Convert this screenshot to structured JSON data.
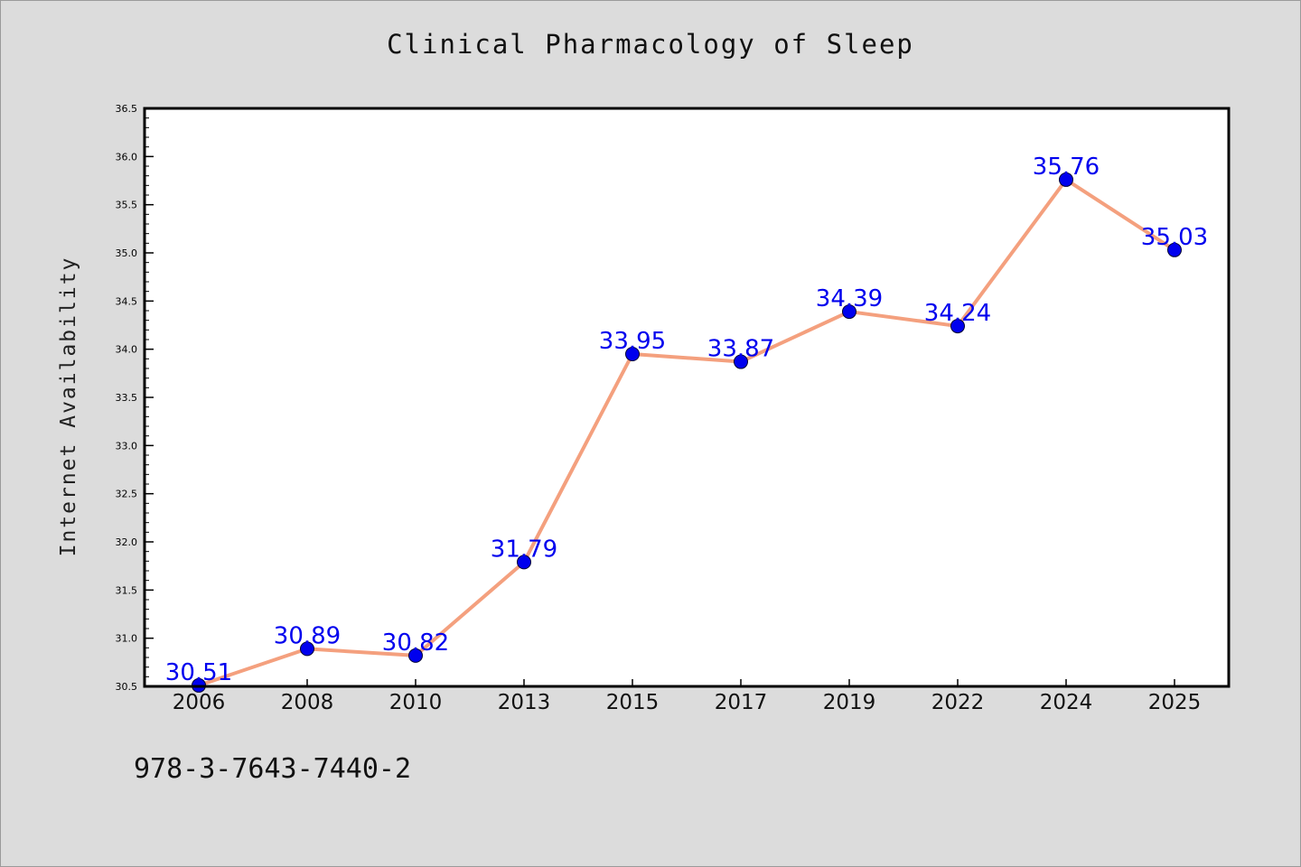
{
  "title": "Clinical Pharmacology of Sleep",
  "footer_text": "978-3-7643-7440-2",
  "colors": {
    "background": "#dcdcdc",
    "plot_background": "#ffffff",
    "line": "#f4a07e",
    "marker": "#0000ee",
    "data_label": "#0000ee"
  },
  "chart_data": {
    "type": "line",
    "title": "Clinical Pharmacology of Sleep",
    "xlabel": "",
    "ylabel": "Internet Availability",
    "categories": [
      "2006",
      "2008",
      "2010",
      "2013",
      "2015",
      "2017",
      "2019",
      "2022",
      "2024",
      "2025"
    ],
    "values": [
      30.51,
      30.89,
      30.82,
      31.79,
      33.95,
      33.87,
      34.39,
      34.24,
      35.76,
      35.03
    ],
    "data_labels": [
      "30.51",
      "30.89",
      "30.82",
      "31.79",
      "33.95",
      "33.87",
      "34.39",
      "34.24",
      "35.76",
      "35.03"
    ],
    "ylim": [
      30.5,
      36.5
    ],
    "y_ticks": [
      "30.5",
      "31.0",
      "31.5",
      "32.0",
      "32.5",
      "33.0",
      "33.5",
      "34.0",
      "34.5",
      "35.0",
      "35.5",
      "36.0",
      "36.5"
    ],
    "y_minor_step": 0.1,
    "grid": false,
    "legend": "none"
  }
}
